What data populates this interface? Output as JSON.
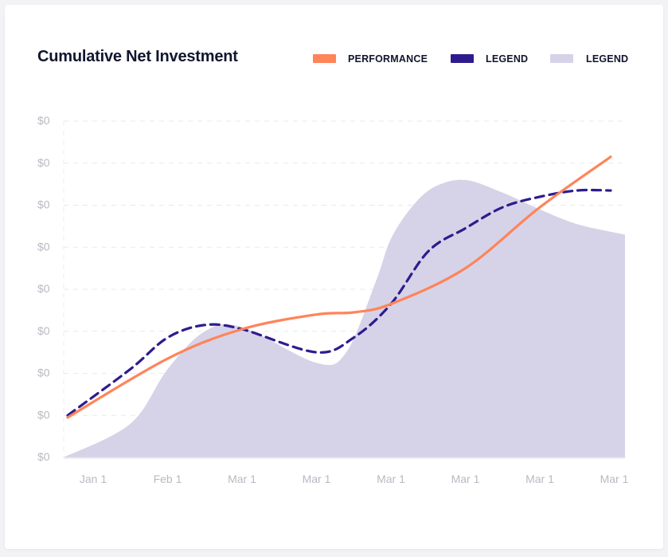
{
  "chart_data": {
    "type": "line",
    "title": "Cumulative Net Investment",
    "xlabel": "",
    "ylabel": "",
    "categories": [
      "Jan 1",
      "Feb 1",
      "Mar 1",
      "Mar 1",
      "Mar 1",
      "Mar 1",
      "Mar 1",
      "Mar 1"
    ],
    "y_tick_labels": [
      "$0",
      "$0",
      "$0",
      "$0",
      "$0",
      "$0",
      "$0",
      "$0",
      "$0"
    ],
    "ylim": [
      0,
      8
    ],
    "grid": true,
    "legend_position": "top-right",
    "series": [
      {
        "name": "PERFORMANCE",
        "style": "solid line",
        "color": "#ff8459",
        "x": [
          0.0,
          1.0,
          2.0,
          3.0,
          3.5,
          4.0,
          5.0,
          6.0,
          7.0
        ],
        "y": [
          0.95,
          2.35,
          3.05,
          3.4,
          3.45,
          3.65,
          4.5,
          5.95,
          7.15
        ]
      },
      {
        "name": "LEGEND",
        "style": "dashed line",
        "color": "#2e1c8f",
        "x": [
          0.0,
          0.5,
          1.0,
          1.5,
          2.0,
          3.0,
          3.5,
          4.0,
          4.5,
          5.0,
          5.5,
          6.0,
          6.5,
          7.0
        ],
        "y": [
          1.0,
          2.1,
          2.85,
          3.15,
          3.05,
          2.5,
          2.85,
          3.65,
          4.9,
          5.45,
          5.95,
          6.2,
          6.35,
          6.35
        ]
      },
      {
        "name": "LEGEND",
        "style": "area",
        "color": "#d6d3e8",
        "x": [
          0.0,
          0.5,
          1.0,
          1.5,
          2.0,
          3.0,
          3.4,
          3.8,
          4.0,
          4.3,
          4.6,
          5.0,
          5.5,
          6.0,
          6.5,
          7.0
        ],
        "y": [
          0.0,
          0.8,
          2.1,
          3.0,
          3.1,
          2.25,
          2.5,
          4.2,
          5.2,
          6.0,
          6.45,
          6.6,
          6.3,
          5.9,
          5.55,
          5.3
        ]
      }
    ]
  },
  "colors": {
    "card": "#ffffff",
    "grid": "#e9e9f0",
    "tick": "#b9b9c4",
    "title": "#11162e"
  }
}
